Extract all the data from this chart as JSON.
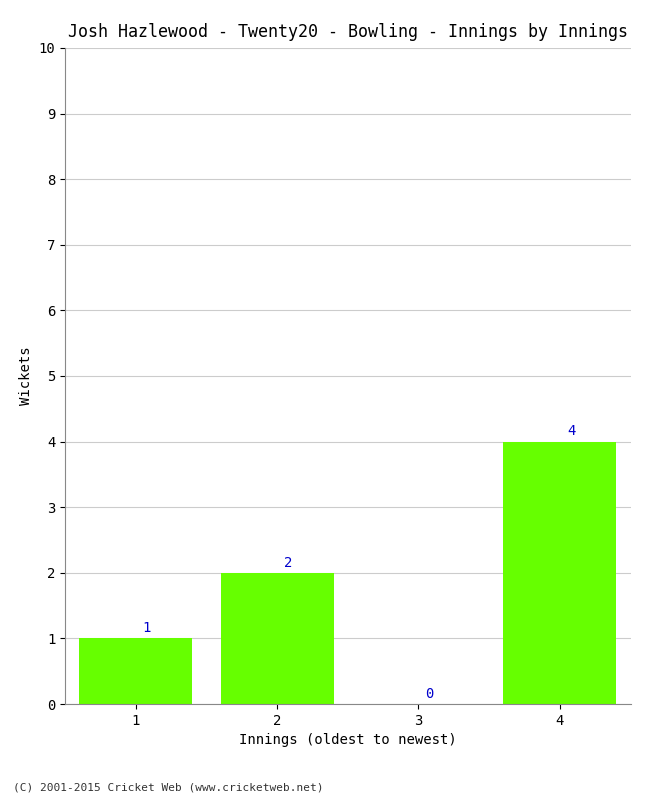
{
  "title": "Josh Hazlewood - Twenty20 - Bowling - Innings by Innings",
  "categories": [
    "1",
    "2",
    "3",
    "4"
  ],
  "values": [
    1,
    2,
    0,
    4
  ],
  "bar_color": "#66ff00",
  "xlabel": "Innings (oldest to newest)",
  "ylabel": "Wickets",
  "ylim": [
    0,
    10
  ],
  "yticks": [
    0,
    1,
    2,
    3,
    4,
    5,
    6,
    7,
    8,
    9,
    10
  ],
  "background_color": "#ffffff",
  "footer": "(C) 2001-2015 Cricket Web (www.cricketweb.net)",
  "title_fontsize": 12,
  "label_fontsize": 10,
  "annotation_color": "#0000cc",
  "bar_width": 0.8
}
